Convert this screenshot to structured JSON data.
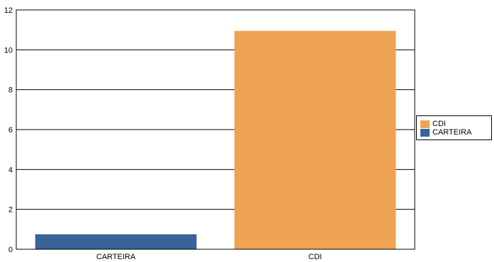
{
  "chart_data": {
    "type": "bar",
    "categories": [
      "CARTEIRA",
      "CDI"
    ],
    "values": [
      0.75,
      10.95
    ],
    "colors": [
      "#386497",
      "#EFA352"
    ],
    "ylim": [
      0,
      12
    ],
    "yticks": [
      0,
      2,
      4,
      6,
      8,
      10,
      12
    ],
    "grid": true,
    "legend": {
      "placement": "right",
      "entries": [
        {
          "label": "CDI",
          "color": "#EFA352"
        },
        {
          "label": "CARTEIRA",
          "color": "#386497"
        }
      ]
    }
  }
}
